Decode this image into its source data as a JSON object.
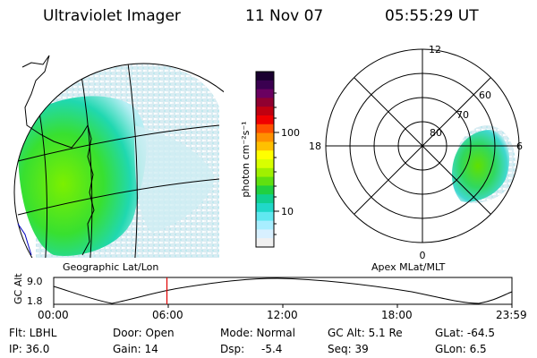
{
  "header": {
    "instrument": "Ultraviolet Imager",
    "date": "11 Nov 07",
    "time": "05:55:29 UT"
  },
  "geographic_panel": {
    "label": "Geographic Lat/Lon"
  },
  "apex_panel": {
    "label": "Apex  MLat/MLT",
    "mlt_labels": [
      "12",
      "18",
      "6",
      "0"
    ],
    "mlat_labels": [
      "80",
      "70",
      "60"
    ]
  },
  "colorbar": {
    "axis_label": "photon cm⁻²s⁻¹",
    "ticks": [
      "100",
      "10"
    ],
    "colors": [
      "#1a0030",
      "#3a0050",
      "#6a0060",
      "#900030",
      "#c00010",
      "#f00000",
      "#ff5000",
      "#ff9000",
      "#ffc000",
      "#ffff00",
      "#d8ff00",
      "#a0f000",
      "#60e010",
      "#20d040",
      "#10d090",
      "#20d8c8",
      "#60e8f0",
      "#a8eeff",
      "#d8f0ff",
      "#f0f0f0"
    ]
  },
  "altitude_timeline": {
    "axis_label": "GC Alt",
    "y_max": "9.0",
    "y_min": "1.8",
    "time_ticks": [
      "00:00",
      "06:00",
      "12:00",
      "18:00",
      "23:59"
    ],
    "current_time_fraction": 0.247,
    "marker_color": "#e00000"
  },
  "info": {
    "flt": "Flt: LBHL",
    "ip": "IP: 36.0",
    "door": "Door: Open",
    "gain": "Gain: 14",
    "mode": "Mode: Normal",
    "dsp_label": "Dsp:",
    "dsp_value": "-5.4",
    "gc_alt": "GC Alt: 5.1 Re",
    "seq": "Seq: 39",
    "glat": "GLat: -64.5",
    "glon": "GLon:  6.5"
  }
}
